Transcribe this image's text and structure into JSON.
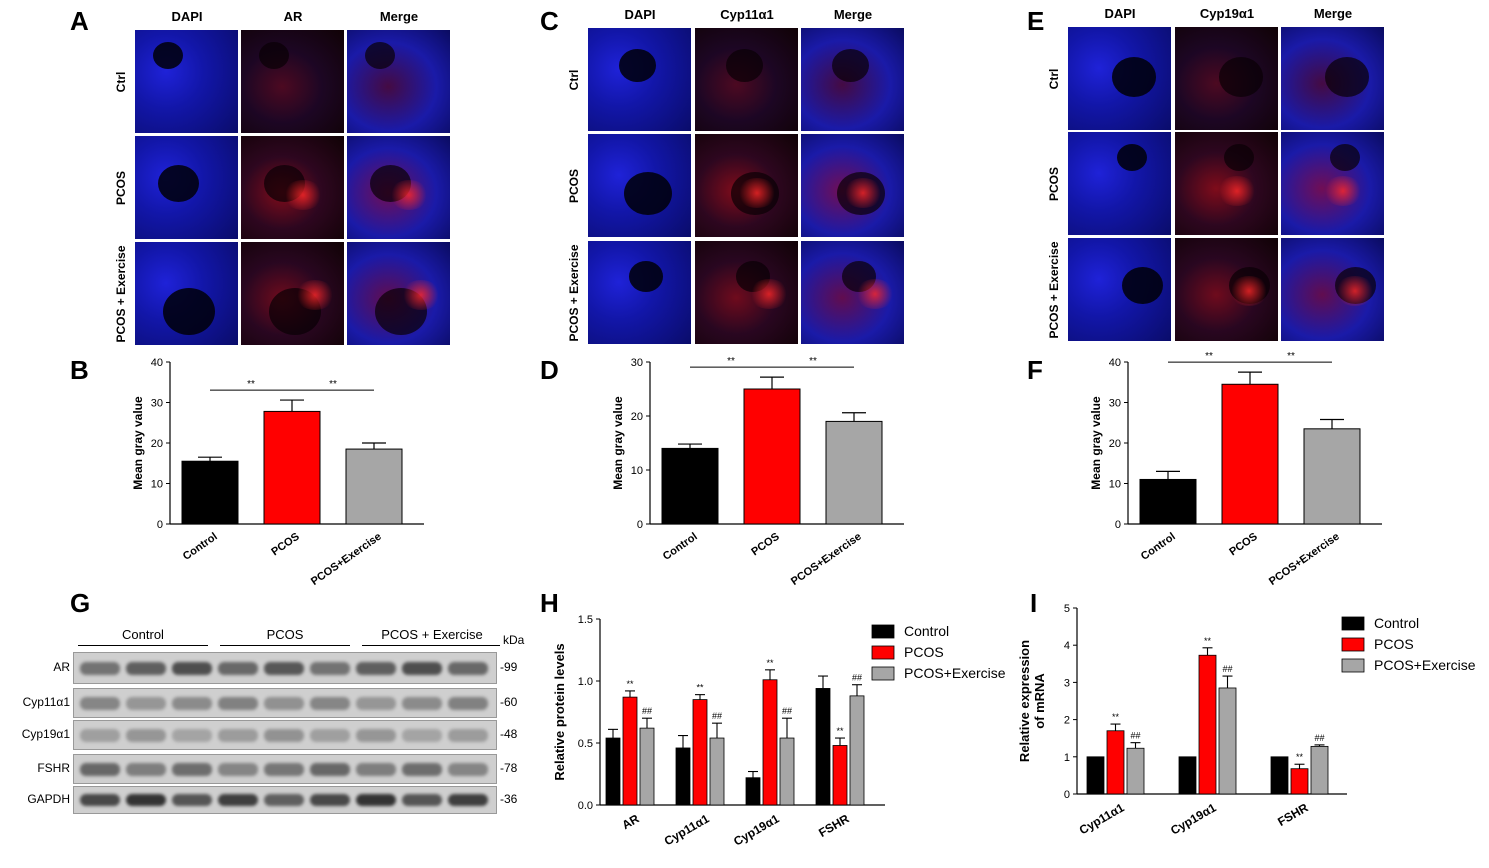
{
  "panels": {
    "A": "A",
    "B": "B",
    "C": "C",
    "D": "D",
    "E": "E",
    "F": "F",
    "G": "G",
    "H": "H",
    "I": "I"
  },
  "micrographs": [
    {
      "panel": "A",
      "columns": [
        "DAPI",
        "AR",
        "Merge"
      ],
      "rows": [
        "Ctrl",
        "PCOS",
        "PCOS + Exercise"
      ]
    },
    {
      "panel": "C",
      "columns": [
        "DAPI",
        "Cyp11α1",
        "Merge"
      ],
      "rows": [
        "Ctrl",
        "PCOS",
        "PCOS + Exercise"
      ]
    },
    {
      "panel": "E",
      "columns": [
        "DAPI",
        "Cyp19α1",
        "Merge"
      ],
      "rows": [
        "Ctrl",
        "PCOS",
        "PCOS + Exercise"
      ]
    }
  ],
  "colors": {
    "control": "#000000",
    "pcos": "#ff0000",
    "exercise": "#a6a6a6",
    "dapi": "#1a1aff",
    "stain": "#d41010"
  },
  "western_blot": {
    "groups": [
      "Control",
      "PCOS",
      "PCOS + Exercise"
    ],
    "kda_label": "kDa",
    "rows": [
      {
        "label": "AR",
        "kda": "-99"
      },
      {
        "label": "Cyp11α1",
        "kda": "-60"
      },
      {
        "label": "Cyp19α1",
        "kda": "-48"
      },
      {
        "label": "FSHR",
        "kda": "-78"
      },
      {
        "label": "GAPDH",
        "kda": "-36"
      }
    ]
  },
  "chart_data": [
    {
      "panel": "B",
      "type": "bar",
      "ylabel": "Mean gray value",
      "ylim": [
        0,
        40
      ],
      "yticks": [
        0,
        10,
        20,
        30,
        40
      ],
      "categories": [
        "Control",
        "PCOS",
        "PCOS+Exercise"
      ],
      "values": [
        15.5,
        27.8,
        18.5
      ],
      "errors": [
        1.0,
        2.8,
        1.5
      ],
      "significance": [
        {
          "from": 0,
          "to": 1,
          "label": "**"
        },
        {
          "from": 1,
          "to": 2,
          "label": "**"
        }
      ]
    },
    {
      "panel": "D",
      "type": "bar",
      "ylabel": "Mean gray value",
      "ylim": [
        0,
        30
      ],
      "yticks": [
        0,
        10,
        20,
        30
      ],
      "categories": [
        "Control",
        "PCOS",
        "PCOS+Exercise"
      ],
      "values": [
        14.0,
        25.0,
        19.0
      ],
      "errors": [
        0.8,
        2.2,
        1.6
      ],
      "significance": [
        {
          "from": 0,
          "to": 1,
          "label": "**"
        },
        {
          "from": 1,
          "to": 2,
          "label": "**"
        }
      ]
    },
    {
      "panel": "F",
      "type": "bar",
      "ylabel": "Mean gray value",
      "ylim": [
        0,
        40
      ],
      "yticks": [
        0,
        10,
        20,
        30,
        40
      ],
      "categories": [
        "Control",
        "PCOS",
        "PCOS+Exercise"
      ],
      "values": [
        11.0,
        34.5,
        23.5
      ],
      "errors": [
        2.0,
        3.0,
        2.3
      ],
      "significance": [
        {
          "from": 0,
          "to": 1,
          "label": "**"
        },
        {
          "from": 1,
          "to": 2,
          "label": "**"
        }
      ]
    },
    {
      "panel": "H",
      "type": "bar",
      "ylabel": "Relative protein levels",
      "ylim": [
        0,
        1.5
      ],
      "yticks": [
        0.0,
        0.5,
        1.0,
        1.5
      ],
      "categories": [
        "AR",
        "Cyp11α1",
        "Cyp19α1",
        "FSHR"
      ],
      "series": [
        {
          "name": "Control",
          "values": [
            0.54,
            0.46,
            0.22,
            0.94
          ],
          "errors": [
            0.07,
            0.1,
            0.05,
            0.1
          ],
          "marks": [
            "",
            "",
            "",
            ""
          ]
        },
        {
          "name": "PCOS",
          "values": [
            0.87,
            0.85,
            1.01,
            0.48
          ],
          "errors": [
            0.05,
            0.04,
            0.08,
            0.06
          ],
          "marks": [
            "**",
            "**",
            "**",
            "**"
          ]
        },
        {
          "name": "PCOS+Exercise",
          "values": [
            0.62,
            0.54,
            0.54,
            0.88
          ],
          "errors": [
            0.08,
            0.12,
            0.16,
            0.09
          ],
          "marks": [
            "##",
            "##",
            "##",
            "##"
          ]
        }
      ]
    },
    {
      "panel": "I",
      "type": "bar",
      "ylabel": "Relative expression of mRNA",
      "ylim": [
        0,
        5
      ],
      "yticks": [
        0,
        1,
        2,
        3,
        4,
        5
      ],
      "categories": [
        "Cyp11α1",
        "Cyp19α1",
        "FSHR"
      ],
      "series": [
        {
          "name": "Control",
          "values": [
            1.0,
            1.0,
            1.0
          ],
          "errors": [
            0,
            0,
            0
          ],
          "marks": [
            "",
            "",
            ""
          ]
        },
        {
          "name": "PCOS",
          "values": [
            1.7,
            3.73,
            0.68
          ],
          "errors": [
            0.18,
            0.2,
            0.12
          ],
          "marks": [
            "**",
            "**",
            "**"
          ]
        },
        {
          "name": "PCOS+Exercise",
          "values": [
            1.23,
            2.85,
            1.28
          ],
          "errors": [
            0.15,
            0.32,
            0.04
          ],
          "marks": [
            "##",
            "##",
            "##"
          ]
        }
      ]
    }
  ]
}
